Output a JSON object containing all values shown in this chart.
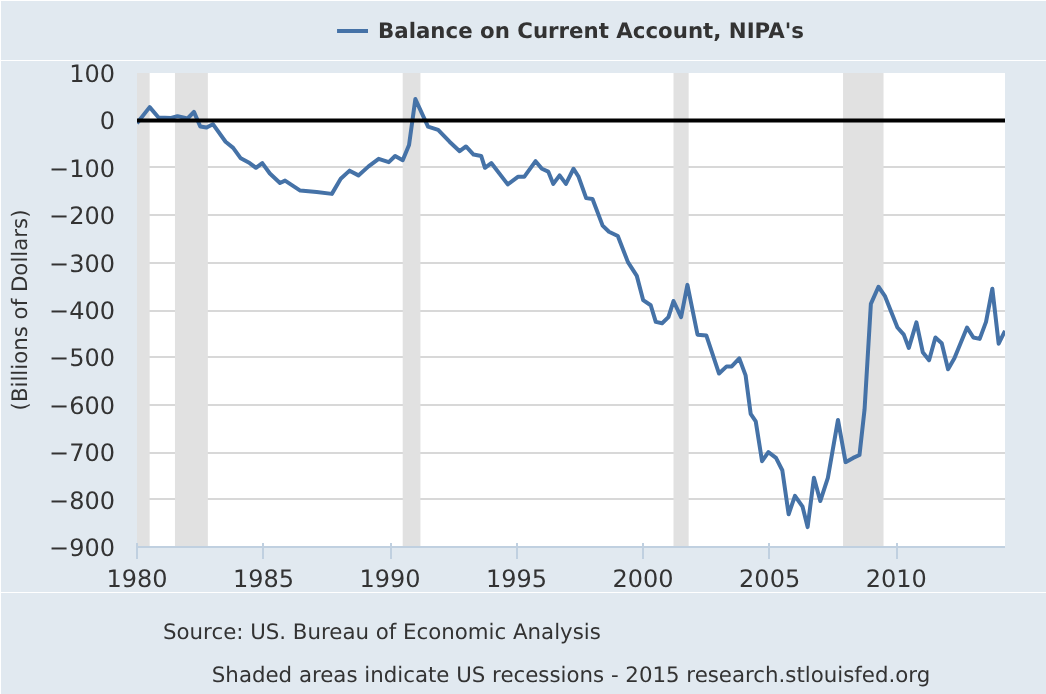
{
  "chart_data": {
    "type": "line",
    "ylabel": "(Billions of Dollars)",
    "legend": "top",
    "grid": "y",
    "marker": "none",
    "line_style": "solid",
    "xlim": [
      1980,
      2014.3
    ],
    "xticks": [
      1980,
      1985,
      1990,
      1995,
      2000,
      2005,
      2010
    ],
    "ylim": [
      -900,
      100
    ],
    "yticks": [
      100,
      0,
      -100,
      -200,
      -300,
      -400,
      -500,
      -600,
      -700,
      -800,
      -900
    ],
    "x": [
      1980.0,
      1980.5,
      1980.85,
      1981.35,
      1981.6,
      1982.0,
      1982.25,
      1982.5,
      1982.75,
      1983.0,
      1983.5,
      1983.8,
      1984.1,
      1984.45,
      1984.7,
      1984.95,
      1985.25,
      1985.65,
      1985.85,
      1986.45,
      1987.1,
      1987.7,
      1988.05,
      1988.4,
      1988.75,
      1989.15,
      1989.55,
      1989.95,
      1990.2,
      1990.5,
      1990.75,
      1991.0,
      1991.5,
      1991.9,
      1992.35,
      1992.75,
      1993.0,
      1993.3,
      1993.6,
      1993.75,
      1994.0,
      1994.65,
      1995.05,
      1995.3,
      1995.75,
      1996.0,
      1996.25,
      1996.45,
      1996.7,
      1996.95,
      1997.25,
      1997.45,
      1997.75,
      1998.0,
      1998.4,
      1998.65,
      1999.0,
      1999.4,
      1999.75,
      2000.0,
      2000.3,
      2000.5,
      2000.75,
      2001.0,
      2001.2,
      2001.5,
      2001.75,
      2002.15,
      2002.5,
      2003.0,
      2003.3,
      2003.5,
      2003.8,
      2004.05,
      2004.25,
      2004.45,
      2004.7,
      2004.95,
      2005.25,
      2005.5,
      2005.75,
      2006.0,
      2006.3,
      2006.5,
      2006.75,
      2007.0,
      2007.3,
      2007.7,
      2008.0,
      2008.3,
      2008.55,
      2008.75,
      2009.0,
      2009.3,
      2009.55,
      2010.05,
      2010.3,
      2010.5,
      2010.8,
      2011.05,
      2011.3,
      2011.55,
      2011.8,
      2012.05,
      2012.3,
      2012.8,
      2013.05,
      2013.3,
      2013.55,
      2013.8,
      2014.05,
      2014.3
    ],
    "series": [
      {
        "name": "Balance on Current Account, NIPA's",
        "color": "#4572a7",
        "values": [
          -6,
          28,
          6,
          5,
          9,
          4,
          18,
          -13,
          -15,
          -8,
          -45,
          -58,
          -80,
          -90,
          -100,
          -90,
          -112,
          -132,
          -127,
          -148,
          -151,
          -155,
          -123,
          -106,
          -116,
          -97,
          -81,
          -88,
          -75,
          -84,
          -52,
          45,
          -13,
          -20,
          -45,
          -65,
          -55,
          -72,
          -75,
          -100,
          -90,
          -135,
          -119,
          -119,
          -86,
          -102,
          -108,
          -134,
          -116,
          -134,
          -102,
          -119,
          -164,
          -166,
          -222,
          -235,
          -244,
          -299,
          -328,
          -379,
          -390,
          -425,
          -428,
          -415,
          -381,
          -415,
          -347,
          -452,
          -454,
          -534,
          -519,
          -519,
          -502,
          -538,
          -619,
          -635,
          -719,
          -700,
          -712,
          -738,
          -831,
          -792,
          -815,
          -858,
          -754,
          -803,
          -754,
          -632,
          -721,
          -712,
          -706,
          -610,
          -387,
          -351,
          -370,
          -437,
          -452,
          -480,
          -426,
          -489,
          -506,
          -458,
          -470,
          -525,
          -502,
          -437,
          -458,
          -461,
          -425,
          -355,
          -471,
          -444
        ]
      }
    ],
    "ref_lines": [
      {
        "axis": "y",
        "value": 0,
        "color": "#000000"
      }
    ],
    "bands": [
      {
        "axis": "x",
        "from": 1980.0,
        "to": 1980.5,
        "color": "#e1e1e1"
      },
      {
        "axis": "x",
        "from": 1981.5,
        "to": 1982.8,
        "color": "#e1e1e1"
      },
      {
        "axis": "x",
        "from": 1990.5,
        "to": 1991.2,
        "color": "#e1e1e1"
      },
      {
        "axis": "x",
        "from": 2001.2,
        "to": 2001.8,
        "color": "#e1e1e1"
      },
      {
        "axis": "x",
        "from": 2007.9,
        "to": 2009.5,
        "color": "#e1e1e1"
      }
    ],
    "annotations": [
      "Source: US. Bureau of Economic Analysis",
      "Shaded areas indicate US recessions - 2015 research.stlouisfed.org"
    ]
  }
}
